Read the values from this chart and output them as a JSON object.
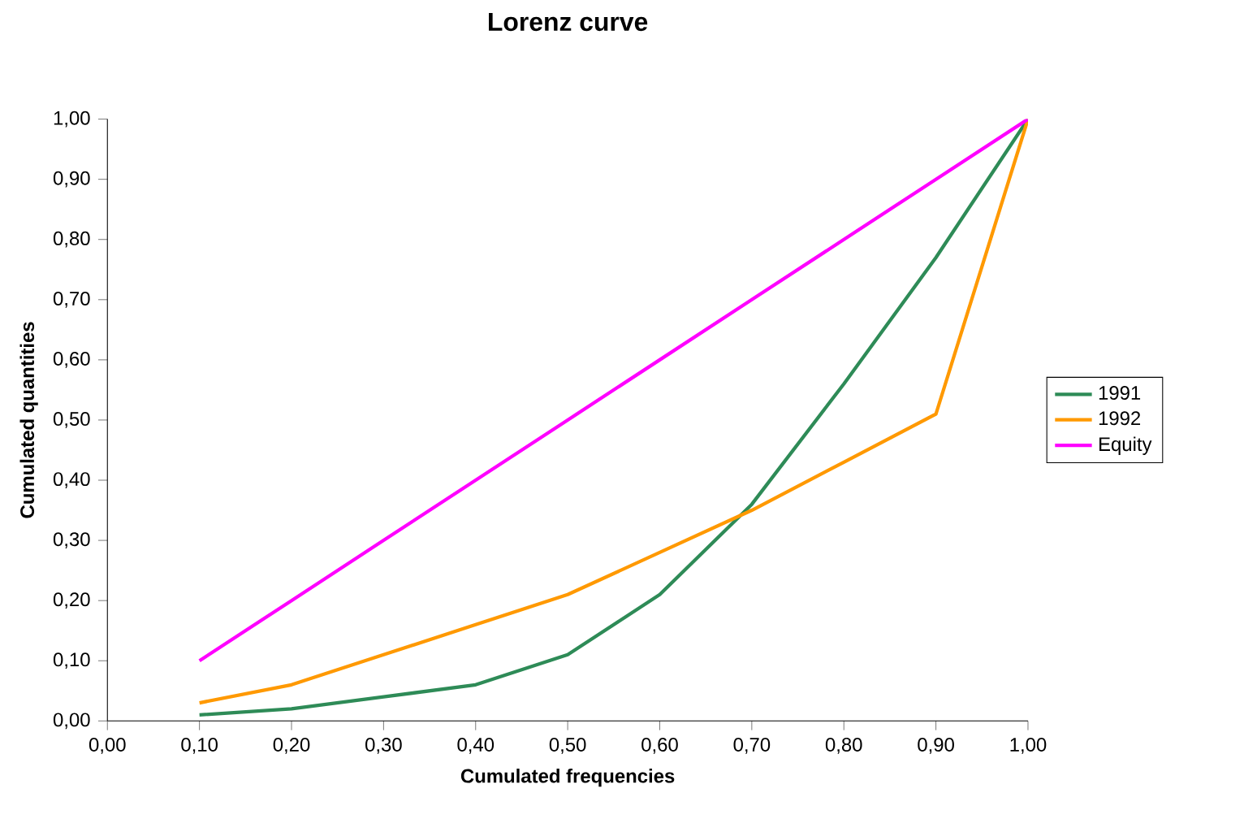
{
  "chart_data": {
    "type": "line",
    "title": "Lorenz curve",
    "xlabel": "Cumulated frequencies",
    "ylabel": "Cumulated quantities",
    "x": [
      0.1,
      0.2,
      0.3,
      0.4,
      0.5,
      0.6,
      0.7,
      0.8,
      0.9,
      1.0
    ],
    "series": [
      {
        "name": "1991",
        "color": "#2e8b57",
        "values": [
          0.01,
          0.02,
          0.04,
          0.06,
          0.11,
          0.21,
          0.36,
          0.56,
          0.77,
          1.0
        ]
      },
      {
        "name": "1992",
        "color": "#ff9900",
        "values": [
          0.03,
          0.06,
          0.11,
          0.16,
          0.21,
          0.28,
          0.35,
          0.43,
          0.51,
          1.0
        ]
      },
      {
        "name": "Equity",
        "color": "#ff00ff",
        "values": [
          0.1,
          0.2,
          0.3,
          0.4,
          0.5,
          0.6,
          0.7,
          0.8,
          0.9,
          1.0
        ]
      }
    ],
    "xlim": [
      0,
      1
    ],
    "ylim": [
      0,
      1
    ],
    "xticks": [
      {
        "value": 0,
        "label": "0,00"
      },
      {
        "value": 0.1,
        "label": "0,10"
      },
      {
        "value": 0.2,
        "label": "0,20"
      },
      {
        "value": 0.3,
        "label": "0,30"
      },
      {
        "value": 0.4,
        "label": "0,40"
      },
      {
        "value": 0.5,
        "label": "0,50"
      },
      {
        "value": 0.6,
        "label": "0,60"
      },
      {
        "value": 0.7,
        "label": "0,70"
      },
      {
        "value": 0.8,
        "label": "0,80"
      },
      {
        "value": 0.9,
        "label": "0,90"
      },
      {
        "value": 1,
        "label": "1,00"
      }
    ],
    "yticks": [
      {
        "value": 0,
        "label": "0,00"
      },
      {
        "value": 0.1,
        "label": "0,10"
      },
      {
        "value": 0.2,
        "label": "0,20"
      },
      {
        "value": 0.3,
        "label": "0,30"
      },
      {
        "value": 0.4,
        "label": "0,40"
      },
      {
        "value": 0.5,
        "label": "0,50"
      },
      {
        "value": 0.6,
        "label": "0,60"
      },
      {
        "value": 0.7,
        "label": "0,70"
      },
      {
        "value": 0.8,
        "label": "0,80"
      },
      {
        "value": 0.9,
        "label": "0,90"
      },
      {
        "value": 1,
        "label": "1,00"
      }
    ],
    "grid": false,
    "legend": "right",
    "marker": "none",
    "line_style": "solid"
  }
}
